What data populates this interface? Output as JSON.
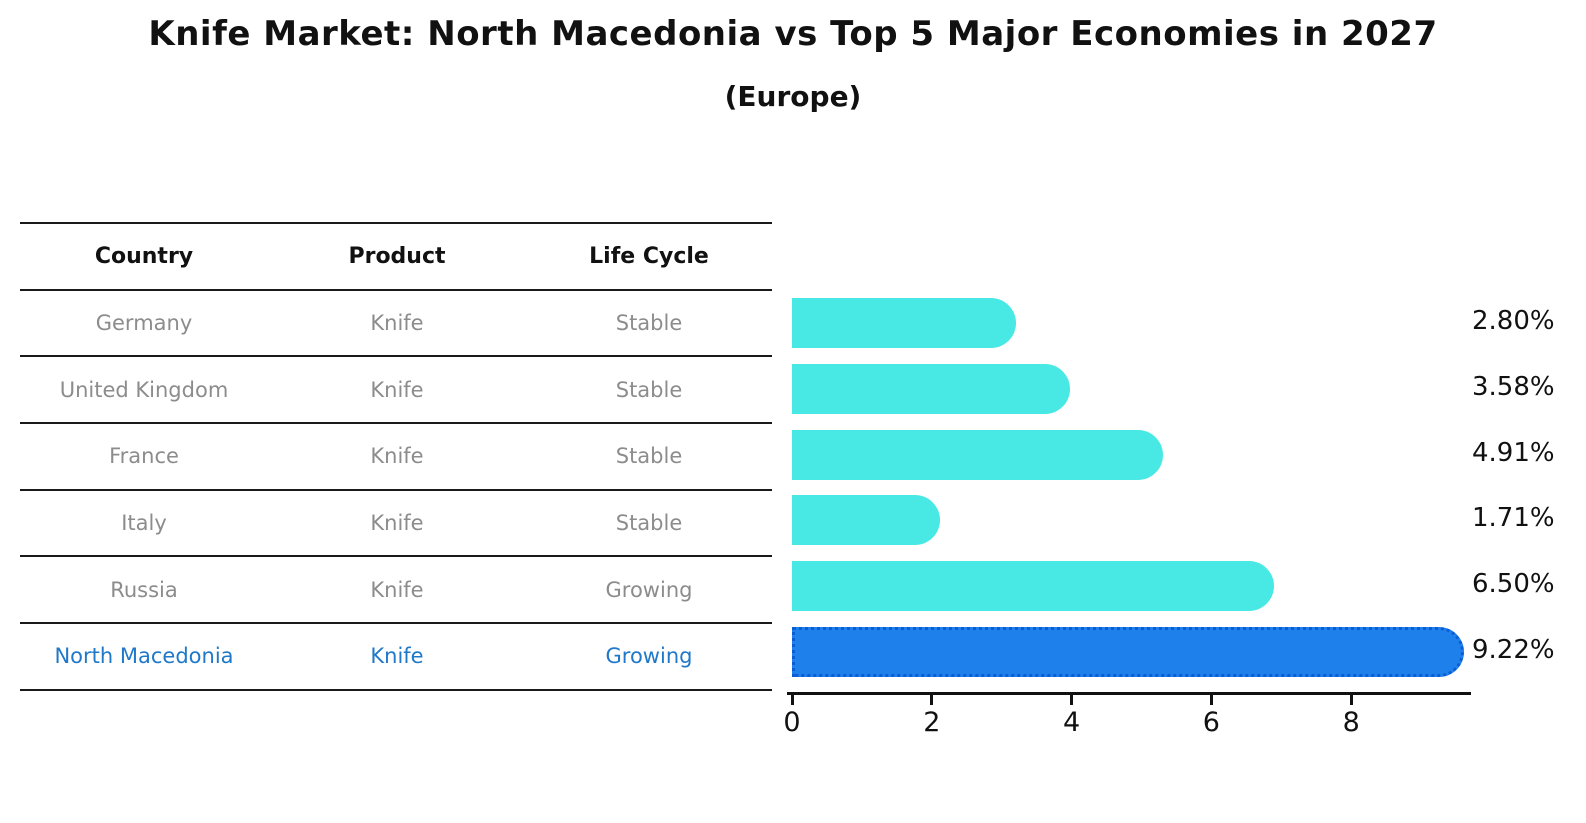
{
  "header": {
    "title": "Knife Market: North Macedonia vs Top 5 Major Economies in 2027",
    "subtitle": "(Europe)"
  },
  "table": {
    "headers": [
      "Country",
      "Product",
      "Life Cycle"
    ],
    "rows": [
      {
        "country": "Germany",
        "product": "Knife",
        "life_cycle": "Stable",
        "highlight": false
      },
      {
        "country": "United Kingdom",
        "product": "Knife",
        "life_cycle": "Stable",
        "highlight": false
      },
      {
        "country": "France",
        "product": "Knife",
        "life_cycle": "Stable",
        "highlight": false
      },
      {
        "country": "Italy",
        "product": "Knife",
        "life_cycle": "Stable",
        "highlight": false
      },
      {
        "country": "Russia",
        "product": "Knife",
        "life_cycle": "Growing",
        "highlight": false
      },
      {
        "country": "North Macedonia",
        "product": "Knife",
        "life_cycle": "Growing",
        "highlight": true
      }
    ]
  },
  "chart_data": {
    "type": "bar",
    "orientation": "horizontal",
    "title": "Knife Market: North Macedonia vs Top 5 Major Economies in 2027",
    "subtitle": "(Europe)",
    "categories": [
      "Germany",
      "United Kingdom",
      "France",
      "Italy",
      "Russia",
      "North Macedonia"
    ],
    "values": [
      2.8,
      3.58,
      4.91,
      1.71,
      6.5,
      9.22
    ],
    "value_labels": [
      "2.80%",
      "3.58%",
      "4.91%",
      "1.71%",
      "6.50%",
      "9.22%"
    ],
    "xlabel": "",
    "ylabel": "",
    "xlim": [
      0,
      9.7
    ],
    "xticks": [
      "0",
      "2",
      "4",
      "6",
      "8"
    ],
    "grid": false,
    "legend": "none",
    "bar_color": "#48e8e4",
    "highlight_index": 5,
    "highlight_color": "#1e80eb",
    "highlight_border_color": "#0c5cd6",
    "highlight_text_color": "#1f78c9",
    "muted_text_color": "#8c8c8c"
  }
}
